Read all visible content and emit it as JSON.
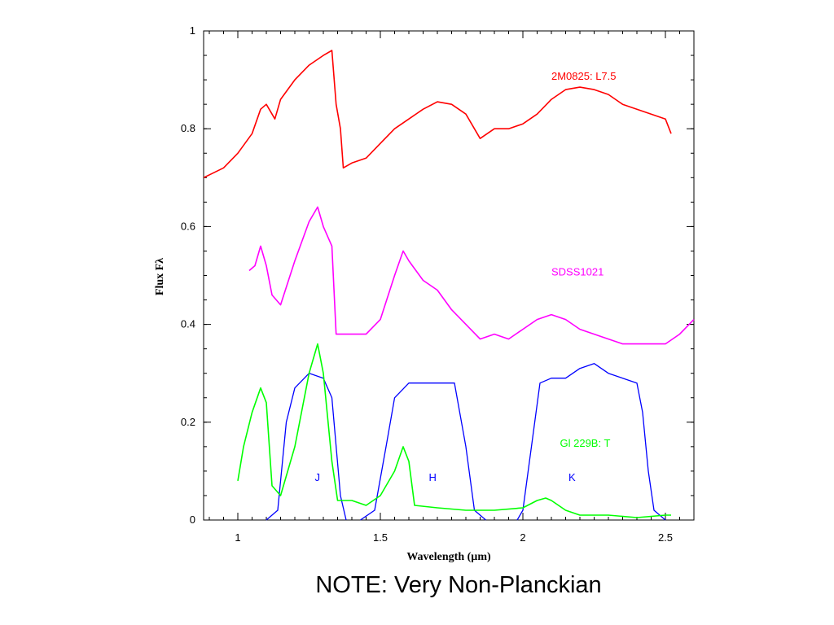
{
  "caption": "NOTE: Very Non-Planckian",
  "chart_data": {
    "type": "line",
    "xlabel": "Wavelength (µm)",
    "ylabel": "Flux Fλ",
    "xlim": [
      0.88,
      2.6
    ],
    "ylim": [
      0,
      1
    ],
    "xticks": [
      1,
      1.5,
      2,
      2.5
    ],
    "xtick_labels": [
      "1",
      "1.5",
      "2",
      "2.5"
    ],
    "yticks": [
      0,
      0.2,
      0.4,
      0.6,
      0.8,
      1
    ],
    "ytick_labels": [
      "0",
      "0.2",
      "0.4",
      "0.6",
      "0.8",
      "1"
    ],
    "grid": false,
    "series": [
      {
        "name": "2M0825: L7.5",
        "color": "#ff0000",
        "x": [
          0.88,
          0.95,
          1.0,
          1.05,
          1.08,
          1.1,
          1.13,
          1.15,
          1.2,
          1.25,
          1.3,
          1.33,
          1.345,
          1.36,
          1.37,
          1.4,
          1.45,
          1.5,
          1.55,
          1.6,
          1.65,
          1.7,
          1.75,
          1.8,
          1.83,
          1.85,
          1.9,
          1.95,
          2.0,
          2.05,
          2.1,
          2.15,
          2.2,
          2.25,
          2.3,
          2.35,
          2.4,
          2.45,
          2.5,
          2.52
        ],
        "y": [
          0.7,
          0.72,
          0.75,
          0.79,
          0.84,
          0.85,
          0.82,
          0.86,
          0.9,
          0.93,
          0.95,
          0.96,
          0.85,
          0.8,
          0.72,
          0.73,
          0.74,
          0.77,
          0.8,
          0.82,
          0.84,
          0.855,
          0.85,
          0.83,
          0.8,
          0.78,
          0.8,
          0.8,
          0.81,
          0.83,
          0.86,
          0.88,
          0.885,
          0.88,
          0.87,
          0.85,
          0.84,
          0.83,
          0.82,
          0.79
        ]
      },
      {
        "name": "SDSS1021",
        "color": "#ff00ff",
        "x": [
          1.04,
          1.06,
          1.08,
          1.1,
          1.12,
          1.15,
          1.2,
          1.25,
          1.28,
          1.3,
          1.33,
          1.345,
          1.4,
          1.45,
          1.5,
          1.55,
          1.58,
          1.6,
          1.65,
          1.7,
          1.75,
          1.8,
          1.85,
          1.9,
          1.95,
          2.0,
          2.05,
          2.1,
          2.15,
          2.2,
          2.25,
          2.3,
          2.35,
          2.4,
          2.45,
          2.5,
          2.55,
          2.6
        ],
        "y": [
          0.51,
          0.52,
          0.56,
          0.52,
          0.46,
          0.44,
          0.53,
          0.61,
          0.64,
          0.6,
          0.56,
          0.38,
          0.38,
          0.38,
          0.41,
          0.5,
          0.55,
          0.53,
          0.49,
          0.47,
          0.43,
          0.4,
          0.37,
          0.38,
          0.37,
          0.39,
          0.41,
          0.42,
          0.41,
          0.39,
          0.38,
          0.37,
          0.36,
          0.36,
          0.36,
          0.36,
          0.38,
          0.41
        ]
      },
      {
        "name": "Gl 229B: T",
        "color": "#00ff00",
        "x": [
          1.0,
          1.02,
          1.05,
          1.08,
          1.1,
          1.12,
          1.15,
          1.2,
          1.25,
          1.28,
          1.3,
          1.33,
          1.35,
          1.4,
          1.45,
          1.5,
          1.55,
          1.58,
          1.6,
          1.62,
          1.7,
          1.8,
          1.9,
          2.0,
          2.05,
          2.08,
          2.1,
          2.15,
          2.2,
          2.3,
          2.4,
          2.5,
          2.52
        ],
        "y": [
          0.08,
          0.15,
          0.22,
          0.27,
          0.24,
          0.07,
          0.05,
          0.15,
          0.3,
          0.36,
          0.3,
          0.12,
          0.04,
          0.04,
          0.03,
          0.05,
          0.1,
          0.15,
          0.12,
          0.03,
          0.025,
          0.02,
          0.02,
          0.025,
          0.04,
          0.045,
          0.04,
          0.02,
          0.01,
          0.01,
          0.005,
          0.01,
          0.01
        ]
      }
    ],
    "filters": [
      {
        "name": "J",
        "color": "#0000ff",
        "x": [
          1.1,
          1.14,
          1.17,
          1.2,
          1.25,
          1.3,
          1.33,
          1.36,
          1.38
        ],
        "y": [
          0.0,
          0.02,
          0.2,
          0.27,
          0.3,
          0.29,
          0.25,
          0.05,
          0.0
        ]
      },
      {
        "name": "H",
        "color": "#0000ff",
        "x": [
          1.43,
          1.48,
          1.52,
          1.55,
          1.6,
          1.7,
          1.76,
          1.8,
          1.83,
          1.87
        ],
        "y": [
          0.0,
          0.02,
          0.15,
          0.25,
          0.28,
          0.28,
          0.28,
          0.15,
          0.02,
          0.0
        ]
      },
      {
        "name": "K",
        "color": "#0000ff",
        "x": [
          1.98,
          2.0,
          2.03,
          2.06,
          2.1,
          2.15,
          2.2,
          2.25,
          2.3,
          2.35,
          2.4,
          2.42,
          2.44,
          2.46,
          2.5
        ],
        "y": [
          0.0,
          0.02,
          0.15,
          0.28,
          0.29,
          0.29,
          0.31,
          0.32,
          0.3,
          0.29,
          0.28,
          0.22,
          0.1,
          0.02,
          0.0
        ]
      }
    ],
    "annotations": [
      {
        "text": "2M0825: L7.5",
        "color": "#ff0000",
        "x": 2.1,
        "y": 0.9
      },
      {
        "text": "SDSS1021",
        "color": "#ff00ff",
        "x": 2.1,
        "y": 0.5
      },
      {
        "text": "Gl 229B: T",
        "color": "#00ff00",
        "x": 2.13,
        "y": 0.15
      },
      {
        "text": "J",
        "color": "#0000ff",
        "x": 1.27,
        "y": 0.08
      },
      {
        "text": "H",
        "color": "#0000ff",
        "x": 1.67,
        "y": 0.08
      },
      {
        "text": "K",
        "color": "#0000ff",
        "x": 2.16,
        "y": 0.08
      }
    ]
  }
}
